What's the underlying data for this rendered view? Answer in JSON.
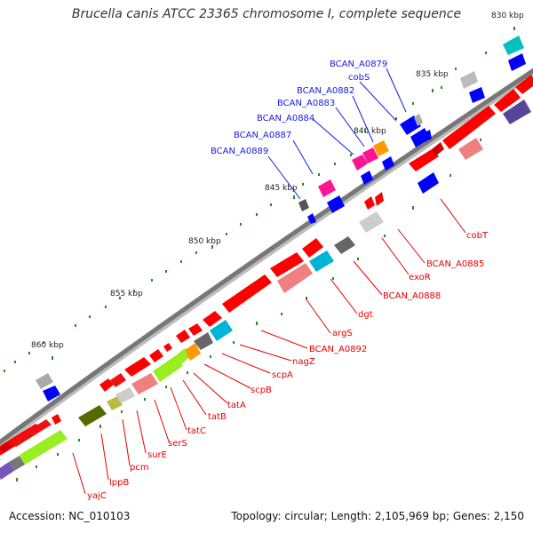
{
  "title": "Brucella canis ATCC 23365 chromosome I, complete sequence",
  "footer": {
    "accession": "Accession: NC_010103",
    "summary": "Topology: circular; Length: 2,105,969 bp; Genes: 2,150"
  },
  "colors": {
    "red": "#ff0000",
    "pink": "#f08080",
    "blue": "#0000ff",
    "cyan": "#00b4d8",
    "teal": "#00c0c0",
    "magenta": "#ff1493",
    "gray": "#999999",
    "darkgray": "#555555",
    "lime": "#99ee22",
    "olive": "#556b00",
    "orange": "#ff9900",
    "purple": "#554499",
    "label_blue": "#1a1ae6",
    "label_red": "#e60000"
  },
  "kbp_marks": [
    "830 kbp",
    "835 kbp",
    "840 kbp",
    "845 kbp",
    "850 kbp",
    "855 kbp",
    "860 kbp"
  ],
  "gene_labels_top": [
    "BCAN_A0879",
    "cobS",
    "BCAN_A0882",
    "BCAN_A0883",
    "BCAN_A0884",
    "BCAN_A0887",
    "BCAN_A0889"
  ],
  "gene_labels_bottom": [
    "cobT",
    "BCAN_A0885",
    "exoR",
    "BCAN_A0888",
    "dgt",
    "argS",
    "BCAN_A0892",
    "nagZ",
    "scpA",
    "scpB",
    "tatA",
    "tatB",
    "tatC",
    "serS",
    "surE",
    "pcm",
    "lppB",
    "yajC"
  ]
}
